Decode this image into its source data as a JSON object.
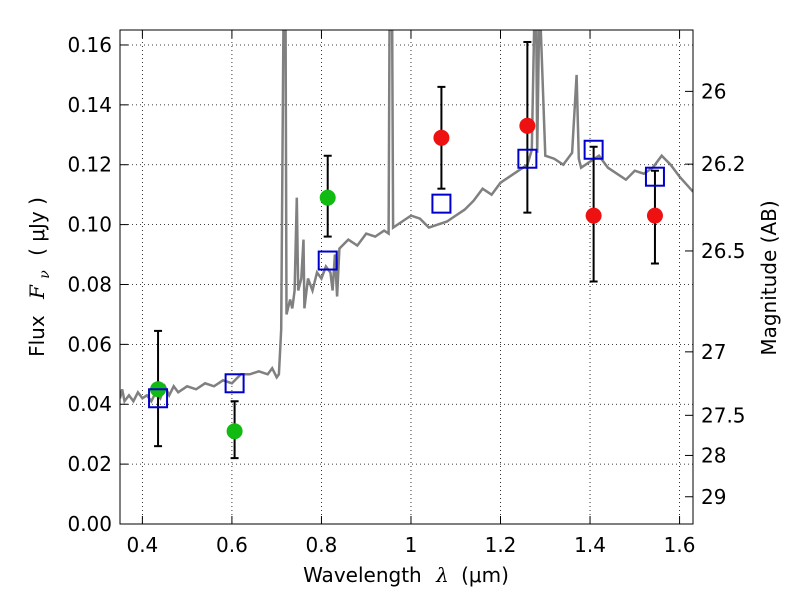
{
  "chart_data": {
    "type": "scatter",
    "xlabel_text": "Wavelength",
    "xlabel_symbol": "λ",
    "xlabel_unit": "(μm)",
    "ylabel_text": "Flux",
    "ylabel_symbol": "F",
    "ylabel_symbol_sub": "ν",
    "ylabel_unit": "( μJy )",
    "y2label": "Magnitude (AB)",
    "xlim": [
      0.35,
      1.63
    ],
    "ylim": [
      0.0,
      0.165
    ],
    "x_ticks": [
      0.4,
      0.6,
      0.8,
      1.0,
      1.2,
      1.4,
      1.6
    ],
    "x_tick_labels": [
      "0.4",
      "0.6",
      "0.8",
      "1",
      "1.2",
      "1.4",
      "1.6"
    ],
    "y_ticks": [
      0.0,
      0.02,
      0.04,
      0.06,
      0.08,
      0.1,
      0.12,
      0.14,
      0.16
    ],
    "y_tick_labels": [
      "0.00",
      "0.02",
      "0.04",
      "0.06",
      "0.08",
      "0.10",
      "0.12",
      "0.14",
      "0.16"
    ],
    "y2_tick_labels": [
      "26",
      "26.2",
      "26.5",
      "27",
      "27.5",
      "28",
      "29"
    ],
    "y2_tick_flux": [
      0.1445,
      0.1202,
      0.0912,
      0.0575,
      0.0363,
      0.0229,
      0.0091
    ],
    "grid": true,
    "colors": {
      "model": "#808080",
      "green_points": "#11bb11",
      "red_points": "#ee1111",
      "model_squares": "#0000cc",
      "errorbars": "#000000"
    },
    "series": [
      {
        "marker": "circle",
        "color": "green",
        "points": [
          {
            "x": 0.435,
            "y": 0.045,
            "err_lo": 0.026,
            "err_hi": 0.0645
          },
          {
            "x": 0.606,
            "y": 0.031,
            "err_lo": 0.022,
            "err_hi": 0.041
          },
          {
            "x": 0.814,
            "y": 0.109,
            "err_lo": 0.096,
            "err_hi": 0.123
          }
        ]
      },
      {
        "marker": "circle",
        "color": "red",
        "points": [
          {
            "x": 1.068,
            "y": 0.129,
            "err_lo": 0.112,
            "err_hi": 0.146
          },
          {
            "x": 1.26,
            "y": 0.133,
            "err_lo": 0.104,
            "err_hi": 0.161
          },
          {
            "x": 1.408,
            "y": 0.103,
            "err_lo": 0.081,
            "err_hi": 0.126
          },
          {
            "x": 1.545,
            "y": 0.103,
            "err_lo": 0.087,
            "err_hi": 0.118
          }
        ]
      },
      {
        "marker": "open-square",
        "color": "blue",
        "points": [
          {
            "x": 0.435,
            "y": 0.042
          },
          {
            "x": 0.606,
            "y": 0.047
          },
          {
            "x": 0.814,
            "y": 0.088
          },
          {
            "x": 1.068,
            "y": 0.107
          },
          {
            "x": 1.26,
            "y": 0.122
          },
          {
            "x": 1.408,
            "y": 0.125
          },
          {
            "x": 1.545,
            "y": 0.116
          }
        ]
      },
      {
        "type": "line",
        "color": "gray",
        "points": [
          [
            0.35,
            0.042
          ],
          [
            0.355,
            0.045
          ],
          [
            0.36,
            0.041
          ],
          [
            0.37,
            0.043
          ],
          [
            0.38,
            0.041
          ],
          [
            0.39,
            0.044
          ],
          [
            0.4,
            0.042
          ],
          [
            0.41,
            0.043
          ],
          [
            0.42,
            0.041
          ],
          [
            0.43,
            0.044
          ],
          [
            0.44,
            0.042
          ],
          [
            0.45,
            0.046
          ],
          [
            0.46,
            0.043
          ],
          [
            0.47,
            0.046
          ],
          [
            0.48,
            0.044
          ],
          [
            0.5,
            0.046
          ],
          [
            0.52,
            0.045
          ],
          [
            0.54,
            0.047
          ],
          [
            0.56,
            0.046
          ],
          [
            0.58,
            0.048
          ],
          [
            0.6,
            0.047
          ],
          [
            0.62,
            0.05
          ],
          [
            0.64,
            0.05
          ],
          [
            0.66,
            0.051
          ],
          [
            0.68,
            0.05
          ],
          [
            0.69,
            0.052
          ],
          [
            0.7,
            0.049
          ],
          [
            0.705,
            0.05
          ],
          [
            0.71,
            0.065
          ],
          [
            0.715,
            0.165
          ],
          [
            0.72,
            0.165
          ],
          [
            0.722,
            0.07
          ],
          [
            0.73,
            0.075
          ],
          [
            0.735,
            0.072
          ],
          [
            0.74,
            0.078
          ],
          [
            0.745,
            0.109
          ],
          [
            0.748,
            0.078
          ],
          [
            0.755,
            0.082
          ],
          [
            0.76,
            0.095
          ],
          [
            0.762,
            0.072
          ],
          [
            0.77,
            0.082
          ],
          [
            0.78,
            0.078
          ],
          [
            0.79,
            0.084
          ],
          [
            0.8,
            0.082
          ],
          [
            0.81,
            0.086
          ],
          [
            0.82,
            0.084
          ],
          [
            0.825,
            0.078
          ],
          [
            0.83,
            0.09
          ],
          [
            0.835,
            0.076
          ],
          [
            0.84,
            0.092
          ],
          [
            0.86,
            0.095
          ],
          [
            0.88,
            0.093
          ],
          [
            0.9,
            0.097
          ],
          [
            0.92,
            0.096
          ],
          [
            0.94,
            0.098
          ],
          [
            0.95,
            0.097
          ],
          [
            0.952,
            0.165
          ],
          [
            0.958,
            0.165
          ],
          [
            0.96,
            0.099
          ],
          [
            0.98,
            0.101
          ],
          [
            1.0,
            0.103
          ],
          [
            1.02,
            0.102
          ],
          [
            1.04,
            0.099
          ],
          [
            1.06,
            0.1
          ],
          [
            1.08,
            0.101
          ],
          [
            1.1,
            0.103
          ],
          [
            1.12,
            0.105
          ],
          [
            1.14,
            0.108
          ],
          [
            1.16,
            0.112
          ],
          [
            1.18,
            0.11
          ],
          [
            1.2,
            0.114
          ],
          [
            1.22,
            0.116
          ],
          [
            1.24,
            0.118
          ],
          [
            1.26,
            0.12
          ],
          [
            1.27,
            0.125
          ],
          [
            1.275,
            0.165
          ],
          [
            1.28,
            0.165
          ],
          [
            1.282,
            0.124
          ],
          [
            1.286,
            0.165
          ],
          [
            1.29,
            0.165
          ],
          [
            1.3,
            0.123
          ],
          [
            1.32,
            0.122
          ],
          [
            1.34,
            0.12
          ],
          [
            1.36,
            0.124
          ],
          [
            1.37,
            0.15
          ],
          [
            1.375,
            0.122
          ],
          [
            1.38,
            0.119
          ],
          [
            1.4,
            0.121
          ],
          [
            1.42,
            0.123
          ],
          [
            1.44,
            0.119
          ],
          [
            1.46,
            0.117
          ],
          [
            1.48,
            0.115
          ],
          [
            1.5,
            0.118
          ],
          [
            1.52,
            0.117
          ],
          [
            1.54,
            0.119
          ],
          [
            1.56,
            0.123
          ],
          [
            1.58,
            0.12
          ],
          [
            1.6,
            0.116
          ],
          [
            1.63,
            0.111
          ]
        ]
      }
    ]
  }
}
